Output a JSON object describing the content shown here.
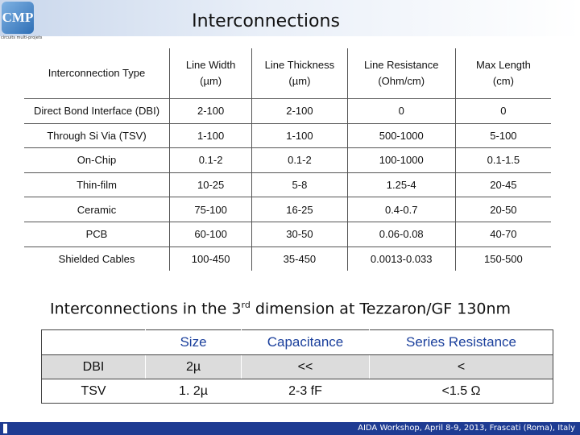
{
  "header": {
    "logo_text": "CMP",
    "logo_subtext": "circuits multi-projets",
    "title": "Interconnections"
  },
  "main_table": {
    "columns": [
      "Interconnection Type",
      "Line Width",
      "(µm)",
      "Line Thickness",
      "(µm)",
      "Line Resistance",
      "(Ohm/cm)",
      "Max Length",
      "(cm)"
    ],
    "rows": [
      [
        "Direct Bond Interface (DBI)",
        "2-100",
        "2-100",
        "0",
        "0"
      ],
      [
        "Through Si Via (TSV)",
        "1-100",
        "1-100",
        "500-1000",
        "5-100"
      ],
      [
        "On-Chip",
        "0.1-2",
        "0.1-2",
        "100-1000",
        "0.1-1.5"
      ],
      [
        "Thin-film",
        "10-25",
        "5-8",
        "1.25-4",
        "20-45"
      ],
      [
        "Ceramic",
        "75-100",
        "16-25",
        "0.4-0.7",
        "20-50"
      ],
      [
        "PCB",
        "60-100",
        "30-50",
        "0.06-0.08",
        "40-70"
      ],
      [
        "Shielded Cables",
        "100-450",
        "35-450",
        "0.0013-0.033",
        "150-500"
      ]
    ]
  },
  "subtitle": {
    "before": "Interconnections in the 3",
    "sup": "rd",
    "after": " dimension at Tezzaron/GF 130nm"
  },
  "small_table": {
    "headers": [
      "",
      "Size",
      "Capacitance",
      "Series Resistance"
    ],
    "rows": [
      [
        "DBI",
        "2µ",
        "<<",
        "<"
      ],
      [
        "TSV",
        "1. 2µ",
        "2-3 fF",
        "<1.5 Ω"
      ]
    ]
  },
  "footer": {
    "text": "AIDA Workshop, April 8-9, 2013, Frascati (Roma), Italy"
  }
}
